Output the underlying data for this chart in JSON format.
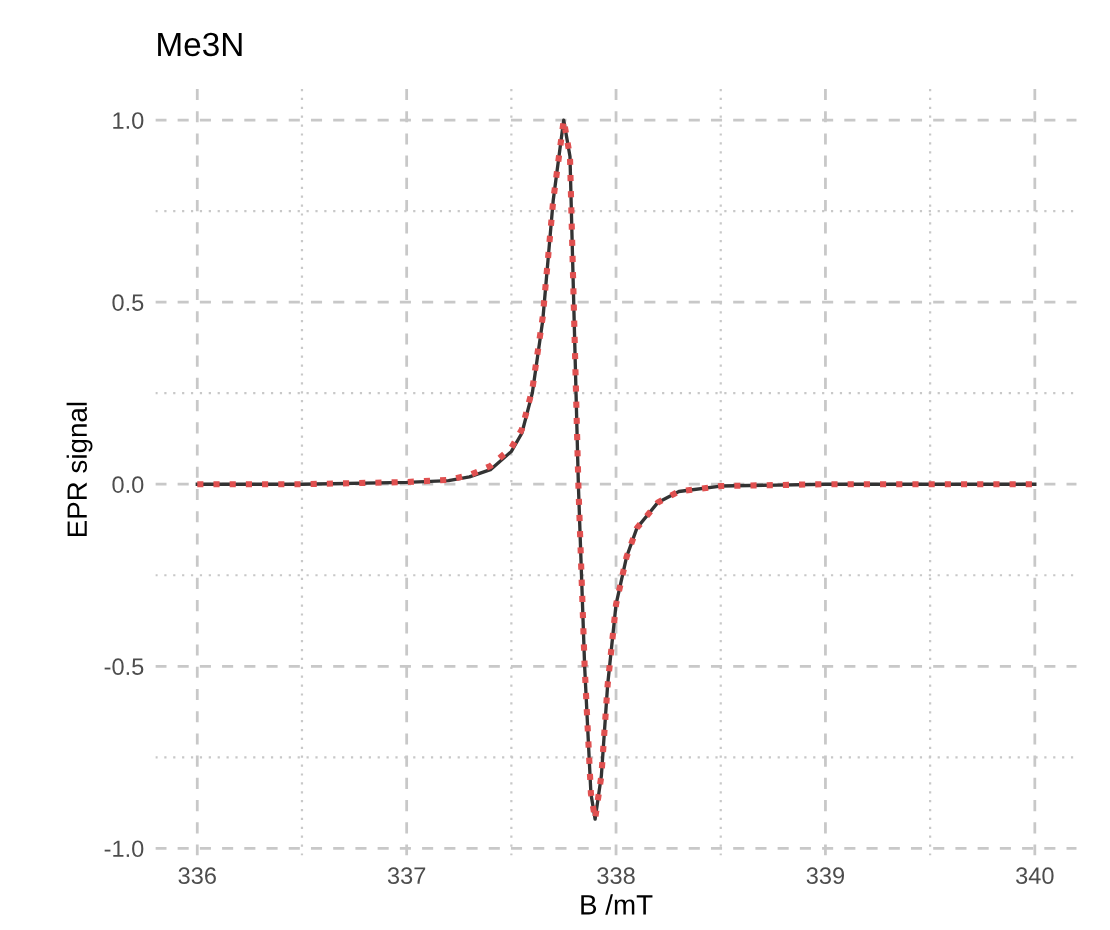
{
  "chart_data": {
    "type": "line",
    "title": "Me3N",
    "xlabel": "B /mT",
    "ylabel": "EPR signal",
    "xlim": [
      335.8,
      340.2
    ],
    "xticks": [
      336,
      337,
      338,
      339,
      340
    ],
    "ylim": [
      -1.02,
      1.1
    ],
    "yticks": [
      {
        "value": -1.0,
        "label": "-1.0"
      },
      {
        "value": -0.5,
        "label": "-0.5"
      },
      {
        "value": 0.0,
        "label": "0.0"
      },
      {
        "value": 0.5,
        "label": "0.5"
      },
      {
        "value": 1.0,
        "label": "1.0"
      }
    ],
    "grid": true,
    "series": [
      {
        "color": "#333333",
        "line_style": "solid",
        "x": [
          336,
          336.5,
          337,
          337.2,
          337.3,
          337.4,
          337.5,
          337.55,
          337.6,
          337.65,
          337.7,
          337.75,
          337.78,
          337.8,
          337.82,
          337.85,
          337.88,
          337.9,
          337.93,
          337.96,
          338.0,
          338.05,
          338.1,
          338.2,
          338.3,
          338.5,
          339,
          340
        ],
        "values": [
          0,
          0,
          0.005,
          0.01,
          0.02,
          0.04,
          0.09,
          0.14,
          0.25,
          0.45,
          0.78,
          1.0,
          0.9,
          0.45,
          0.0,
          -0.5,
          -0.85,
          -0.92,
          -0.8,
          -0.55,
          -0.33,
          -0.2,
          -0.12,
          -0.05,
          -0.02,
          -0.005,
          0,
          0
        ]
      },
      {
        "color": "#e05050",
        "line_style": "dotted",
        "x": [
          336,
          336.5,
          337,
          337.2,
          337.3,
          337.4,
          337.5,
          337.55,
          337.6,
          337.65,
          337.7,
          337.75,
          337.78,
          337.8,
          337.82,
          337.85,
          337.88,
          337.9,
          337.93,
          337.96,
          338.0,
          338.05,
          338.1,
          338.2,
          338.3,
          338.5,
          339,
          340
        ],
        "values": [
          0,
          0,
          0.006,
          0.012,
          0.025,
          0.05,
          0.1,
          0.15,
          0.26,
          0.46,
          0.78,
          1.0,
          0.9,
          0.45,
          0.0,
          -0.5,
          -0.85,
          -0.92,
          -0.8,
          -0.55,
          -0.33,
          -0.2,
          -0.12,
          -0.05,
          -0.02,
          -0.005,
          0,
          0
        ]
      }
    ]
  }
}
